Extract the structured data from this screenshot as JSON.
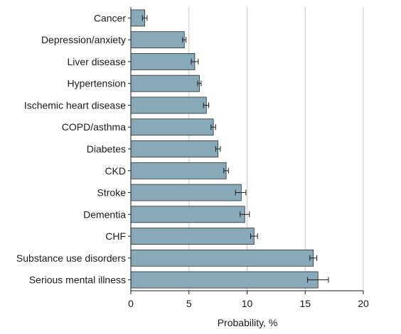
{
  "chart_data": {
    "type": "bar",
    "orientation": "horizontal",
    "xlabel": "Probability, %",
    "xlim": [
      0,
      20
    ],
    "xticks": [
      0,
      5,
      10,
      15,
      20
    ],
    "grid": "vertical",
    "bar_color": "#88a9b8",
    "categories": [
      "Cancer",
      "Depression/anxiety",
      "Liver disease",
      "Hypertension",
      "Ischemic heart disease",
      "COPD/asthma",
      "Diabetes",
      "CKD",
      "Stroke",
      "Dementia",
      "CHF",
      "Substance use disorders",
      "Serious mental illness"
    ],
    "values": [
      1.2,
      4.6,
      5.5,
      5.9,
      6.5,
      7.1,
      7.5,
      8.2,
      9.5,
      9.8,
      10.6,
      15.7,
      16.1
    ],
    "ci_low": [
      1.0,
      4.45,
      5.2,
      5.75,
      6.25,
      6.9,
      7.3,
      8.0,
      9.0,
      9.4,
      10.3,
      15.4,
      15.2
    ],
    "ci_high": [
      1.4,
      4.75,
      5.8,
      6.05,
      6.7,
      7.3,
      7.7,
      8.4,
      9.9,
      10.2,
      10.9,
      16.0,
      17.0
    ]
  }
}
